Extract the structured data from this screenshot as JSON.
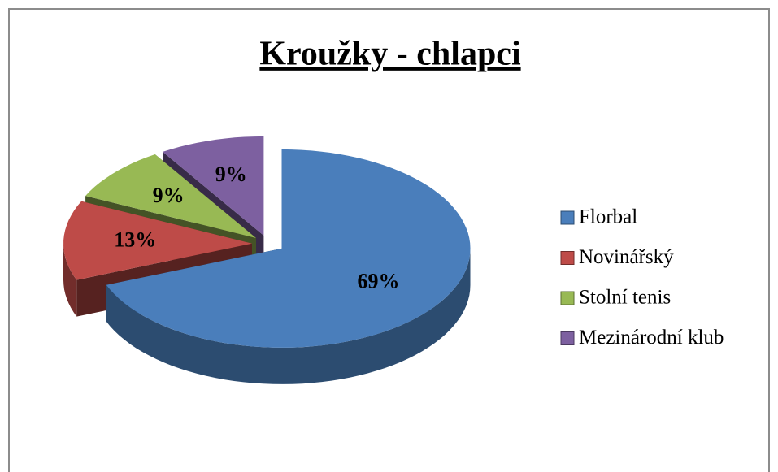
{
  "chart_data": {
    "type": "pie",
    "title": "Kroužky - chlapci",
    "categories": [
      "Florbal",
      "Novinářský",
      "Stolní tenis",
      "Mezinárodní klub"
    ],
    "values": [
      69,
      13,
      9,
      9
    ],
    "value_labels": [
      "69%",
      "13%",
      "9%",
      "9%"
    ],
    "colors": [
      "#4a7ebb",
      "#be4b48",
      "#98b954",
      "#7d60a0"
    ],
    "legend": "right"
  }
}
